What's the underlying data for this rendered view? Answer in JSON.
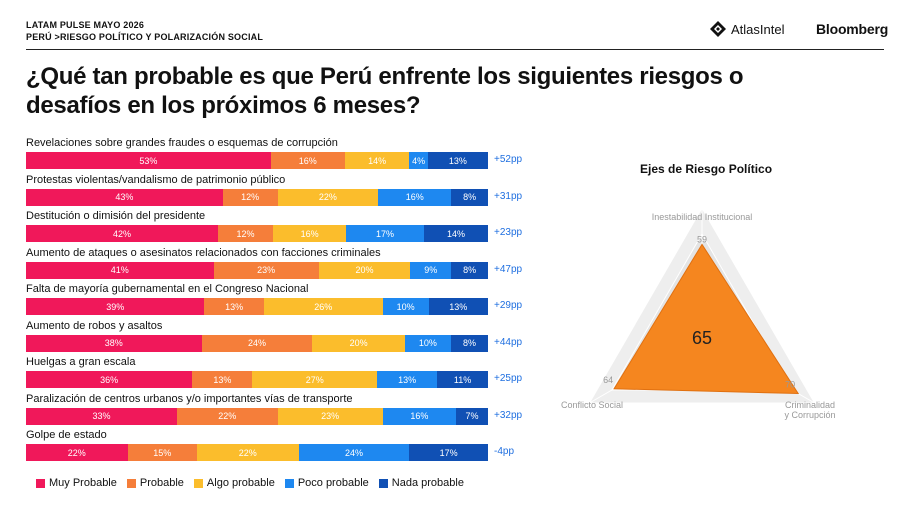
{
  "header": {
    "line1": "LATAM PULSE MAYO 2026",
    "line2": "PERÚ >RIESGO POLÍTICO Y POLARIZACIÓN SOCIAL",
    "brand_atlas": "AtlasIntel",
    "brand_bloomberg": "Bloomberg"
  },
  "title": "¿Qué tan probable es que Perú enfrente los siguientes riesgos o desafíos en los próximos 6 meses?",
  "colors": {
    "muy_probable": "#f0185a",
    "probable": "#f57e3a",
    "algo_probable": "#fbbd2c",
    "poco_probable": "#1e88f0",
    "nada_probable": "#1050b4",
    "net": "#1f6fe0",
    "radar_fill": "#f5861f"
  },
  "legend": [
    "Muy Probable",
    "Probable",
    "Algo probable",
    "Poco probable",
    "Nada probable"
  ],
  "chart_data": [
    {
      "type": "bar",
      "orientation": "horizontal-stacked-100",
      "categories": [
        "Revelaciones sobre grandes fraudes o esquemas de corrupción",
        "Protestas violentas/vandalismo de patrimonio público",
        "Destitución o dimisión del presidente",
        "Aumento de ataques o asesinatos relacionados con facciones criminales",
        "Falta de mayoría gubernamental en el Congreso Nacional",
        "Aumento de robos y asaltos",
        "Huelgas a gran escala",
        "Paralización de centros urbanos y/o importantes vías de transporte",
        "Golpe de estado"
      ],
      "series": [
        {
          "name": "Muy Probable",
          "values": [
            53,
            43,
            42,
            41,
            39,
            38,
            36,
            33,
            22
          ]
        },
        {
          "name": "Probable",
          "values": [
            16,
            12,
            12,
            23,
            13,
            24,
            13,
            22,
            15
          ]
        },
        {
          "name": "Algo probable",
          "values": [
            14,
            22,
            16,
            20,
            26,
            20,
            27,
            23,
            22
          ]
        },
        {
          "name": "Poco probable",
          "values": [
            4,
            16,
            17,
            9,
            10,
            10,
            13,
            16,
            24
          ]
        },
        {
          "name": "Nada probable",
          "values": [
            13,
            8,
            14,
            8,
            13,
            8,
            11,
            7,
            17
          ]
        }
      ],
      "net": [
        "+52pp",
        "+31pp",
        "+23pp",
        "+47pp",
        "+29pp",
        "+44pp",
        "+25pp",
        "+32pp",
        "-4pp"
      ]
    },
    {
      "type": "radar",
      "title": "Ejes de Riesgo Político",
      "axes": [
        "Inestabilidad Institucional",
        "Criminalidad y Corrupción",
        "Conflicto Social"
      ],
      "values": [
        59,
        70,
        64
      ],
      "center_value": "65",
      "range": [
        0,
        100
      ]
    }
  ]
}
